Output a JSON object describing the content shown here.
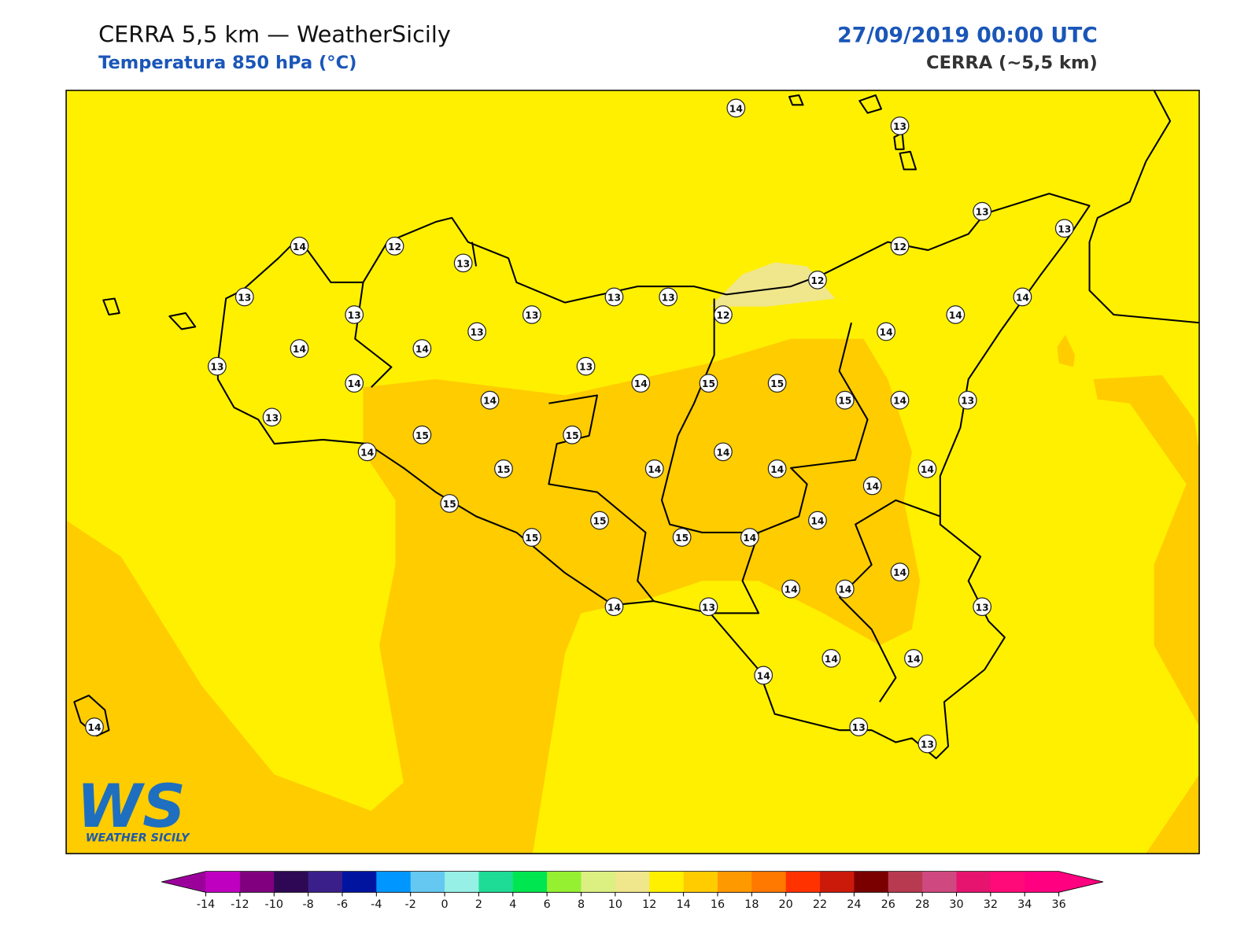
{
  "header": {
    "title": "CERRA 5,5 km — WeatherSicily",
    "subtitle": "Temperatura 850 hPa (°C)",
    "date": "27/09/2019 00:00 UTC",
    "model": "CERRA (~5,5 km)"
  },
  "stations": [
    14,
    13,
    13,
    13,
    14,
    12,
    13,
    12,
    12,
    13,
    13,
    13,
    13,
    13,
    12,
    14,
    14,
    14,
    14,
    14,
    13,
    13,
    13,
    14,
    14,
    15,
    15,
    15,
    14,
    13,
    14,
    13,
    15,
    15,
    14,
    15,
    14,
    14,
    14,
    14,
    14,
    15,
    15,
    15,
    15,
    14,
    14,
    14,
    14,
    14,
    14,
    13,
    13,
    14,
    14,
    14,
    13,
    13,
    14
  ],
  "colorbar": {
    "ticks": [
      -14,
      -12,
      -10,
      -8,
      -6,
      -4,
      -2,
      0,
      2,
      4,
      6,
      8,
      10,
      12,
      14,
      16,
      18,
      20,
      22,
      24,
      26,
      28,
      30,
      32,
      34,
      36
    ],
    "colors": [
      "#c000c0",
      "#800080",
      "#2e0854",
      "#3a1f8a",
      "#0014a0",
      "#0096ff",
      "#64c8f0",
      "#96f0e6",
      "#1edc96",
      "#00e650",
      "#96f032",
      "#dcf082",
      "#f0e68c",
      "#fff000",
      "#ffcc00",
      "#ff9900",
      "#ff7800",
      "#ff3200",
      "#cc1a0a",
      "#7a0000",
      "#b83a50",
      "#d04880",
      "#e6146e",
      "#ff0a78",
      "#ff0080"
    ],
    "under_color": "#9b009b",
    "over_color": "#ff0080"
  },
  "logo": {
    "mark": "WS",
    "text": "WEATHER SICILY"
  }
}
